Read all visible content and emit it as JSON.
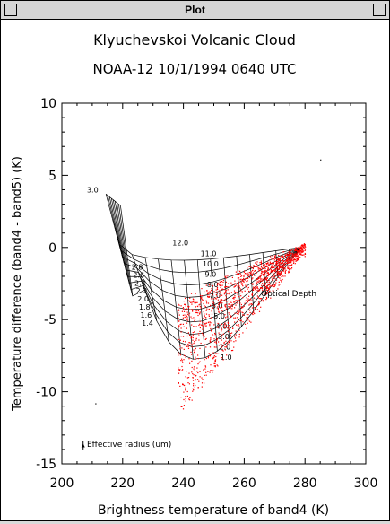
{
  "window": {
    "title": "Plot"
  },
  "chart_data": {
    "type": "scatter",
    "title": "Klyuchevskoi Volcanic Cloud",
    "subtitle": "NOAA-12   10/1/1994   0640 UTC",
    "xlabel": "Brightness temperature of band4 (K)",
    "ylabel": "Temperature difference (band4 - band5) (K)",
    "xlim": [
      200,
      300
    ],
    "ylim": [
      -15,
      10
    ],
    "xticks": [
      200,
      220,
      240,
      260,
      280,
      300
    ],
    "yticks": [
      10,
      5,
      0,
      -5,
      -10,
      -15
    ],
    "grid": false,
    "colors": {
      "grid_lines": "#000000",
      "points": "#ff0000"
    },
    "grid_labels": {
      "radius_start": "3.0",
      "radius_side": [
        "2.8",
        "2.6",
        "2.4",
        "2.2",
        "2.0",
        "1.8",
        "1.6",
        "1.4"
      ],
      "optical_depth_top": "12.0",
      "optical_depth_curve": [
        "11.0",
        "10.0",
        "9.0",
        "8.0",
        "7.0",
        "6.0",
        "5.0",
        "4.0",
        "3.0",
        "2.0",
        "1.0"
      ]
    },
    "annotations": {
      "optical_depth": "Optical Depth",
      "effective_radius": "Effective radius (um)"
    },
    "series": [
      {
        "name": "Effective radius (um)",
        "type": "grid-curves"
      },
      {
        "name": "",
        "type": "scatter",
        "color": "#ff0000",
        "count": 1400,
        "cluster": {
          "x_range": [
            238,
            280
          ],
          "y_range": [
            -12,
            0
          ]
        }
      }
    ]
  }
}
